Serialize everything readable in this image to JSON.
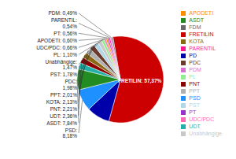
{
  "chart_data": {
    "type": "pie",
    "categories": [
      "FRETILIN",
      "PD",
      "PSD",
      "ASDT",
      "UDT",
      "PNT",
      "KOTA",
      "PPT",
      "PDC",
      "PST",
      "Unabhängige",
      "PL",
      "UDC/PDC",
      "APODETI",
      "PT",
      "PARENTIL",
      "PDM",
      "FDM"
    ],
    "values": [
      57.37,
      8.72,
      8.18,
      7.84,
      2.36,
      2.21,
      2.13,
      2.01,
      1.98,
      1.78,
      1.47,
      1.1,
      0.66,
      0.6,
      0.56,
      0.54,
      0.49,
      0.49
    ],
    "colors": [
      "#CC0000",
      "#0000AA",
      "#1E90FF",
      "#228B22",
      "#20B2AA",
      "#8B0000",
      "#8B6914",
      "#B0B0B0",
      "#6B3A2A",
      "#B0D8E8",
      "#C8C8C8",
      "#90EE90",
      "#FF69B4",
      "#FF8C00",
      "#9932CC",
      "#FF1493",
      "#DA70D6",
      "#696969"
    ],
    "value_labels": [
      "FRETILIN: 57,37%",
      null,
      "PSD:\n8,18%",
      "ASDT: 7,84%",
      "UDT: 2,36%",
      "PNT: 2,21%",
      "KOTA: 2,13%",
      "PPT: 2,01%",
      "PDC:\n1,98%",
      "PST: 1,78%",
      "Unabhängige:\n1,47%",
      "PL: 1,10%",
      "UDC/PDC: 0,66%",
      "APODETI: 0,60%",
      "PT: 0,56%",
      "PARENTIL:\n0,54%",
      "PDM: 0,49%",
      null
    ],
    "legend": "right"
  }
}
